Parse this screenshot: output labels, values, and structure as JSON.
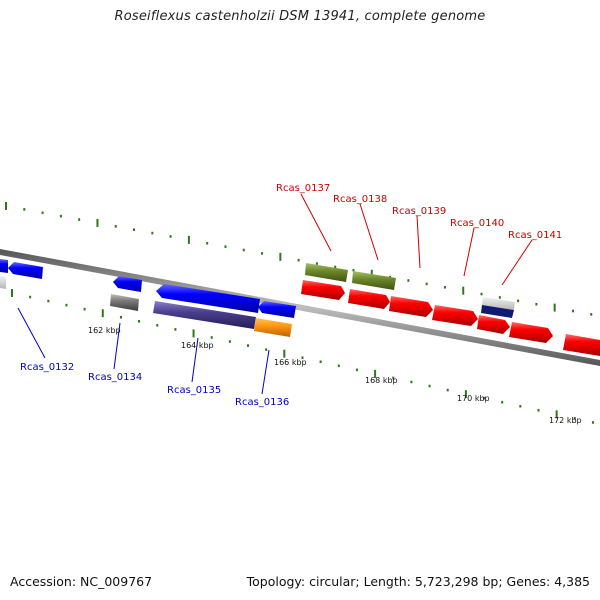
{
  "title": "Roseiflexus castenholzii DSM 13941, complete genome",
  "accession": "Accession: NC_009767",
  "summary": "Topology: circular; Length: 5,723,298 bp; Genes: 4,385",
  "colors": {
    "forward_label": "#cc0000",
    "reverse_label": "#0000cc",
    "tick": "#2a7a1a",
    "backbone": "#8a8a8a"
  },
  "kbp_labels": [
    "162 kbp",
    "164 kbp",
    "166 kbp",
    "168 kbp",
    "170 kbp",
    "172 kbp"
  ],
  "forward_genes": [
    "Rcas_0137",
    "Rcas_0138",
    "Rcas_0139",
    "Rcas_0140",
    "Rcas_0141"
  ],
  "reverse_genes": [
    "Rcas_0132",
    "Rcas_0134",
    "Rcas_0135",
    "Rcas_0136"
  ]
}
